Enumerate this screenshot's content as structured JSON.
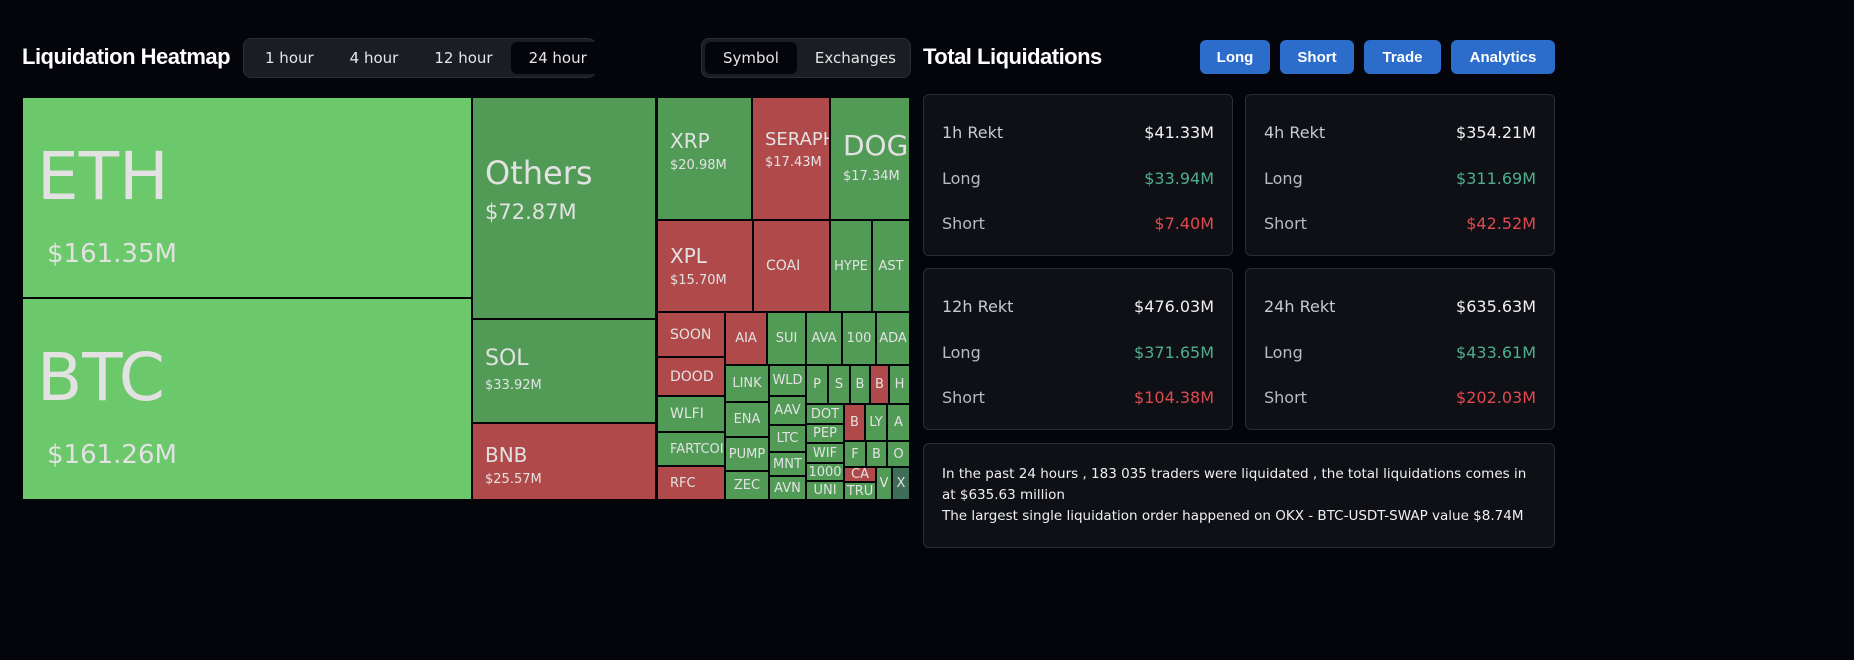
{
  "heatmap": {
    "title": "Liquidation Heatmap",
    "time_tabs": [
      {
        "label": "1 hour",
        "active": false
      },
      {
        "label": "4 hour",
        "active": false
      },
      {
        "label": "12 hour",
        "active": false
      },
      {
        "label": "24 hour",
        "active": true
      }
    ],
    "view_tabs": [
      {
        "label": "Symbol",
        "active": true
      },
      {
        "label": "Exchanges",
        "active": false
      }
    ],
    "colors": {
      "long_major": "#6cc96b",
      "long": "#529b57",
      "short": "#b04a4a",
      "other": "#3e6e57"
    },
    "cells": [
      {
        "symbol": "ETH",
        "value": "$161.35M",
        "side": "long_major"
      },
      {
        "symbol": "BTC",
        "value": "$161.26M",
        "side": "long_major"
      },
      {
        "symbol": "Others",
        "value": "$72.87M",
        "side": "long"
      },
      {
        "symbol": "SOL",
        "value": "$33.92M",
        "side": "long"
      },
      {
        "symbol": "BNB",
        "value": "$25.57M",
        "side": "short"
      },
      {
        "symbol": "XRP",
        "value": "$20.98M",
        "side": "long"
      },
      {
        "symbol": "SERAPH",
        "value": "$17.43M",
        "side": "short"
      },
      {
        "symbol": "DOGE",
        "value": "$17.34M",
        "side": "long"
      },
      {
        "symbol": "XPL",
        "value": "$15.70M",
        "side": "short"
      },
      {
        "symbol": "COAI",
        "value": "",
        "side": "short"
      },
      {
        "symbol": "HYPE",
        "value": "",
        "side": "long"
      },
      {
        "symbol": "AST",
        "value": "",
        "side": "long"
      },
      {
        "symbol": "SOON",
        "value": "",
        "side": "short"
      },
      {
        "symbol": "DOOD",
        "value": "",
        "side": "short"
      },
      {
        "symbol": "WLFI",
        "value": "",
        "side": "long"
      },
      {
        "symbol": "FARTCOIN",
        "value": "",
        "side": "long"
      },
      {
        "symbol": "RFC",
        "value": "",
        "side": "short"
      },
      {
        "symbol": "AIA",
        "value": "",
        "side": "short"
      },
      {
        "symbol": "SUI",
        "value": "",
        "side": "long"
      },
      {
        "symbol": "AVA",
        "value": "",
        "side": "long"
      },
      {
        "symbol": "100",
        "value": "",
        "side": "long"
      },
      {
        "symbol": "ADA",
        "value": "",
        "side": "long"
      },
      {
        "symbol": "LINK",
        "value": "",
        "side": "long"
      },
      {
        "symbol": "ENA",
        "value": "",
        "side": "long"
      },
      {
        "symbol": "PUMP",
        "value": "",
        "side": "long"
      },
      {
        "symbol": "ZEC",
        "value": "",
        "side": "long"
      },
      {
        "symbol": "WLD",
        "value": "",
        "side": "long"
      },
      {
        "symbol": "AAV",
        "value": "",
        "side": "long"
      },
      {
        "symbol": "LTC",
        "value": "",
        "side": "long"
      },
      {
        "symbol": "MNT",
        "value": "",
        "side": "long"
      },
      {
        "symbol": "AVN",
        "value": "",
        "side": "long"
      },
      {
        "symbol": "P",
        "value": "",
        "side": "long"
      },
      {
        "symbol": "S",
        "value": "",
        "side": "long"
      },
      {
        "symbol": "B",
        "value": "",
        "side": "long"
      },
      {
        "symbol": "B",
        "value": "",
        "side": "short"
      },
      {
        "symbol": "H",
        "value": "",
        "side": "long"
      },
      {
        "symbol": "DOT",
        "value": "",
        "side": "long"
      },
      {
        "symbol": "PEP",
        "value": "",
        "side": "long"
      },
      {
        "symbol": "WIF",
        "value": "",
        "side": "long"
      },
      {
        "symbol": "1000",
        "value": "",
        "side": "long"
      },
      {
        "symbol": "UNI",
        "value": "",
        "side": "long"
      },
      {
        "symbol": "B",
        "value": "",
        "side": "short"
      },
      {
        "symbol": "LY",
        "value": "",
        "side": "long"
      },
      {
        "symbol": "A",
        "value": "",
        "side": "long"
      },
      {
        "symbol": "F",
        "value": "",
        "side": "long"
      },
      {
        "symbol": "B",
        "value": "",
        "side": "long"
      },
      {
        "symbol": "O",
        "value": "",
        "side": "long"
      },
      {
        "symbol": "CA",
        "value": "",
        "side": "short"
      },
      {
        "symbol": "TRU",
        "value": "",
        "side": "long"
      },
      {
        "symbol": "V",
        "value": "",
        "side": "long"
      },
      {
        "symbol": "X",
        "value": "",
        "side": "other"
      }
    ]
  },
  "totals": {
    "title": "Total Liquidations",
    "buttons": [
      "Long",
      "Short",
      "Trade",
      "Analytics"
    ],
    "cards": [
      {
        "label": "1h Rekt",
        "total": "$41.33M",
        "long_label": "Long",
        "long": "$33.94M",
        "short_label": "Short",
        "short": "$7.40M"
      },
      {
        "label": "4h Rekt",
        "total": "$354.21M",
        "long_label": "Long",
        "long": "$311.69M",
        "short_label": "Short",
        "short": "$42.52M"
      },
      {
        "label": "12h Rekt",
        "total": "$476.03M",
        "long_label": "Long",
        "long": "$371.65M",
        "short_label": "Short",
        "short": "$104.38M"
      },
      {
        "label": "24h Rekt",
        "total": "$635.63M",
        "long_label": "Long",
        "long": "$433.61M",
        "short_label": "Short",
        "short": "$202.03M"
      }
    ],
    "summary_line1": "In the past 24 hours , 183 035 traders were liquidated , the total liquidations comes in at $635.63 million",
    "summary_line2": "The largest single liquidation order happened on OKX - BTC-USDT-SWAP value $8.74M"
  }
}
